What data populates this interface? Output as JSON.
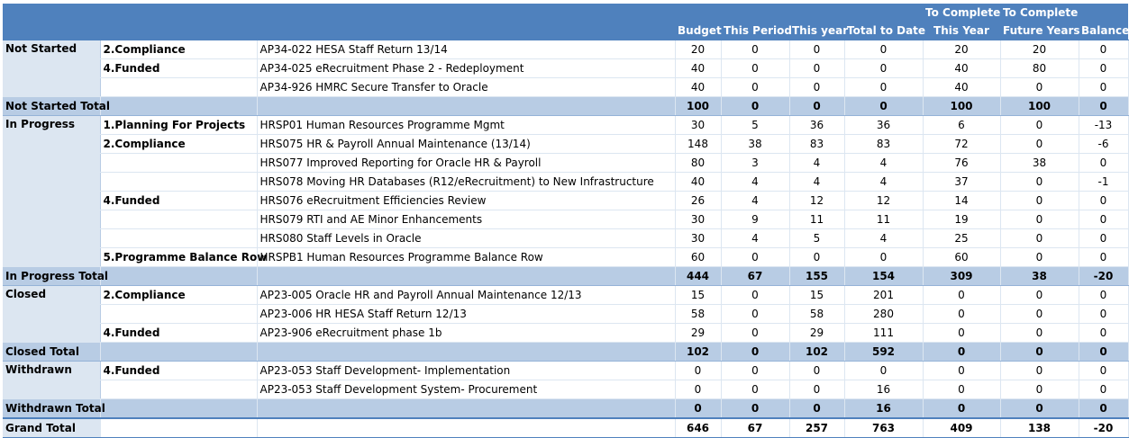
{
  "headers": {
    "row1": [
      "",
      "",
      "",
      "",
      "",
      "",
      "",
      "To Complete",
      "To Complete",
      ""
    ],
    "row2": [
      "",
      "",
      "",
      "Budget",
      "This Period",
      "This year",
      "Total to Date",
      "This Year",
      "Future Years",
      "Balance"
    ]
  },
  "rows": [
    {
      "type": "row",
      "status": "Not Started",
      "category": "2.Compliance",
      "project": "AP34-022 HESA Staff Return 13/14",
      "values": [
        "20",
        "0",
        "0",
        "0",
        "20",
        "20",
        "0"
      ]
    },
    {
      "type": "row",
      "status": "",
      "category": "4.Funded",
      "project": "AP34-025 eRecruitment Phase 2 - Redeployment",
      "values": [
        "40",
        "0",
        "0",
        "0",
        "40",
        "80",
        "0"
      ]
    },
    {
      "type": "row",
      "status": "",
      "category": "",
      "project": "AP34-926 HMRC Secure Transfer to Oracle",
      "values": [
        "40",
        "0",
        "0",
        "0",
        "40",
        "0",
        "0"
      ]
    },
    {
      "type": "total",
      "status": "Not Started Total",
      "category": "",
      "project": "",
      "values": [
        "100",
        "0",
        "0",
        "0",
        "100",
        "100",
        "0"
      ]
    },
    {
      "type": "row",
      "status": "In Progress",
      "category": "1.Planning For Projects",
      "project": "HRSP01 Human Resources Programme Mgmt",
      "values": [
        "30",
        "5",
        "36",
        "36",
        "6",
        "0",
        "-13"
      ]
    },
    {
      "type": "row",
      "status": "",
      "category": "2.Compliance",
      "project": "HRS075 HR & Payroll Annual Maintenance (13/14)",
      "values": [
        "148",
        "38",
        "83",
        "83",
        "72",
        "0",
        "-6"
      ]
    },
    {
      "type": "row",
      "status": "",
      "category": "",
      "project": "HRS077 Improved Reporting for Oracle HR & Payroll",
      "values": [
        "80",
        "3",
        "4",
        "4",
        "76",
        "38",
        "0"
      ]
    },
    {
      "type": "row",
      "status": "",
      "category": "",
      "project": "HRS078 Moving HR Databases (R12/eRecruitment) to New Infrastructure",
      "values": [
        "40",
        "4",
        "4",
        "4",
        "37",
        "0",
        "-1"
      ]
    },
    {
      "type": "row",
      "status": "",
      "category": "4.Funded",
      "project": "HRS076 eRecruitment Efficiencies Review",
      "values": [
        "26",
        "4",
        "12",
        "12",
        "14",
        "0",
        "0"
      ]
    },
    {
      "type": "row",
      "status": "",
      "category": "",
      "project": "HRS079 RTI and AE Minor Enhancements",
      "values": [
        "30",
        "9",
        "11",
        "11",
        "19",
        "0",
        "0"
      ]
    },
    {
      "type": "row",
      "status": "",
      "category": "",
      "project": "HRS080 Staff Levels in Oracle",
      "values": [
        "30",
        "4",
        "5",
        "4",
        "25",
        "0",
        "0"
      ]
    },
    {
      "type": "row",
      "status": "",
      "category": "5.Programme Balance Row",
      "project": "HRSPB1 Human Resources Programme Balance Row",
      "values": [
        "60",
        "0",
        "0",
        "0",
        "60",
        "0",
        "0"
      ]
    },
    {
      "type": "total",
      "status": "In Progress Total",
      "category": "",
      "project": "",
      "values": [
        "444",
        "67",
        "155",
        "154",
        "309",
        "38",
        "-20"
      ]
    },
    {
      "type": "row",
      "status": "Closed",
      "category": "2.Compliance",
      "project": "AP23-005 Oracle HR and Payroll Annual Maintenance 12/13",
      "values": [
        "15",
        "0",
        "15",
        "201",
        "0",
        "0",
        "0"
      ]
    },
    {
      "type": "row",
      "status": "",
      "category": "",
      "project": "AP23-006 HR HESA Staff Return 12/13",
      "values": [
        "58",
        "0",
        "58",
        "280",
        "0",
        "0",
        "0"
      ]
    },
    {
      "type": "row",
      "status": "",
      "category": "4.Funded",
      "project": "AP23-906 eRecruitment phase 1b",
      "values": [
        "29",
        "0",
        "29",
        "111",
        "0",
        "0",
        "0"
      ]
    },
    {
      "type": "total",
      "status": "Closed Total",
      "category": "",
      "project": "",
      "values": [
        "102",
        "0",
        "102",
        "592",
        "0",
        "0",
        "0"
      ]
    },
    {
      "type": "row",
      "status": "Withdrawn",
      "category": "4.Funded",
      "project": "AP23-053 Staff Development- Implementation",
      "values": [
        "0",
        "0",
        "0",
        "0",
        "0",
        "0",
        "0"
      ]
    },
    {
      "type": "row",
      "status": "",
      "category": "",
      "project": "AP23-053 Staff Development System- Procurement",
      "values": [
        "0",
        "0",
        "0",
        "16",
        "0",
        "0",
        "0"
      ]
    },
    {
      "type": "total",
      "status": "Withdrawn Total",
      "category": "",
      "project": "",
      "values": [
        "0",
        "0",
        "0",
        "16",
        "0",
        "0",
        "0"
      ]
    },
    {
      "type": "grand",
      "status": "Grand Total",
      "category": "",
      "project": "",
      "values": [
        "646",
        "67",
        "257",
        "763",
        "409",
        "138",
        "-20"
      ]
    }
  ],
  "colors": {
    "header": "#4f81bd",
    "total": "#b8cce4",
    "status": "#dce6f1"
  }
}
